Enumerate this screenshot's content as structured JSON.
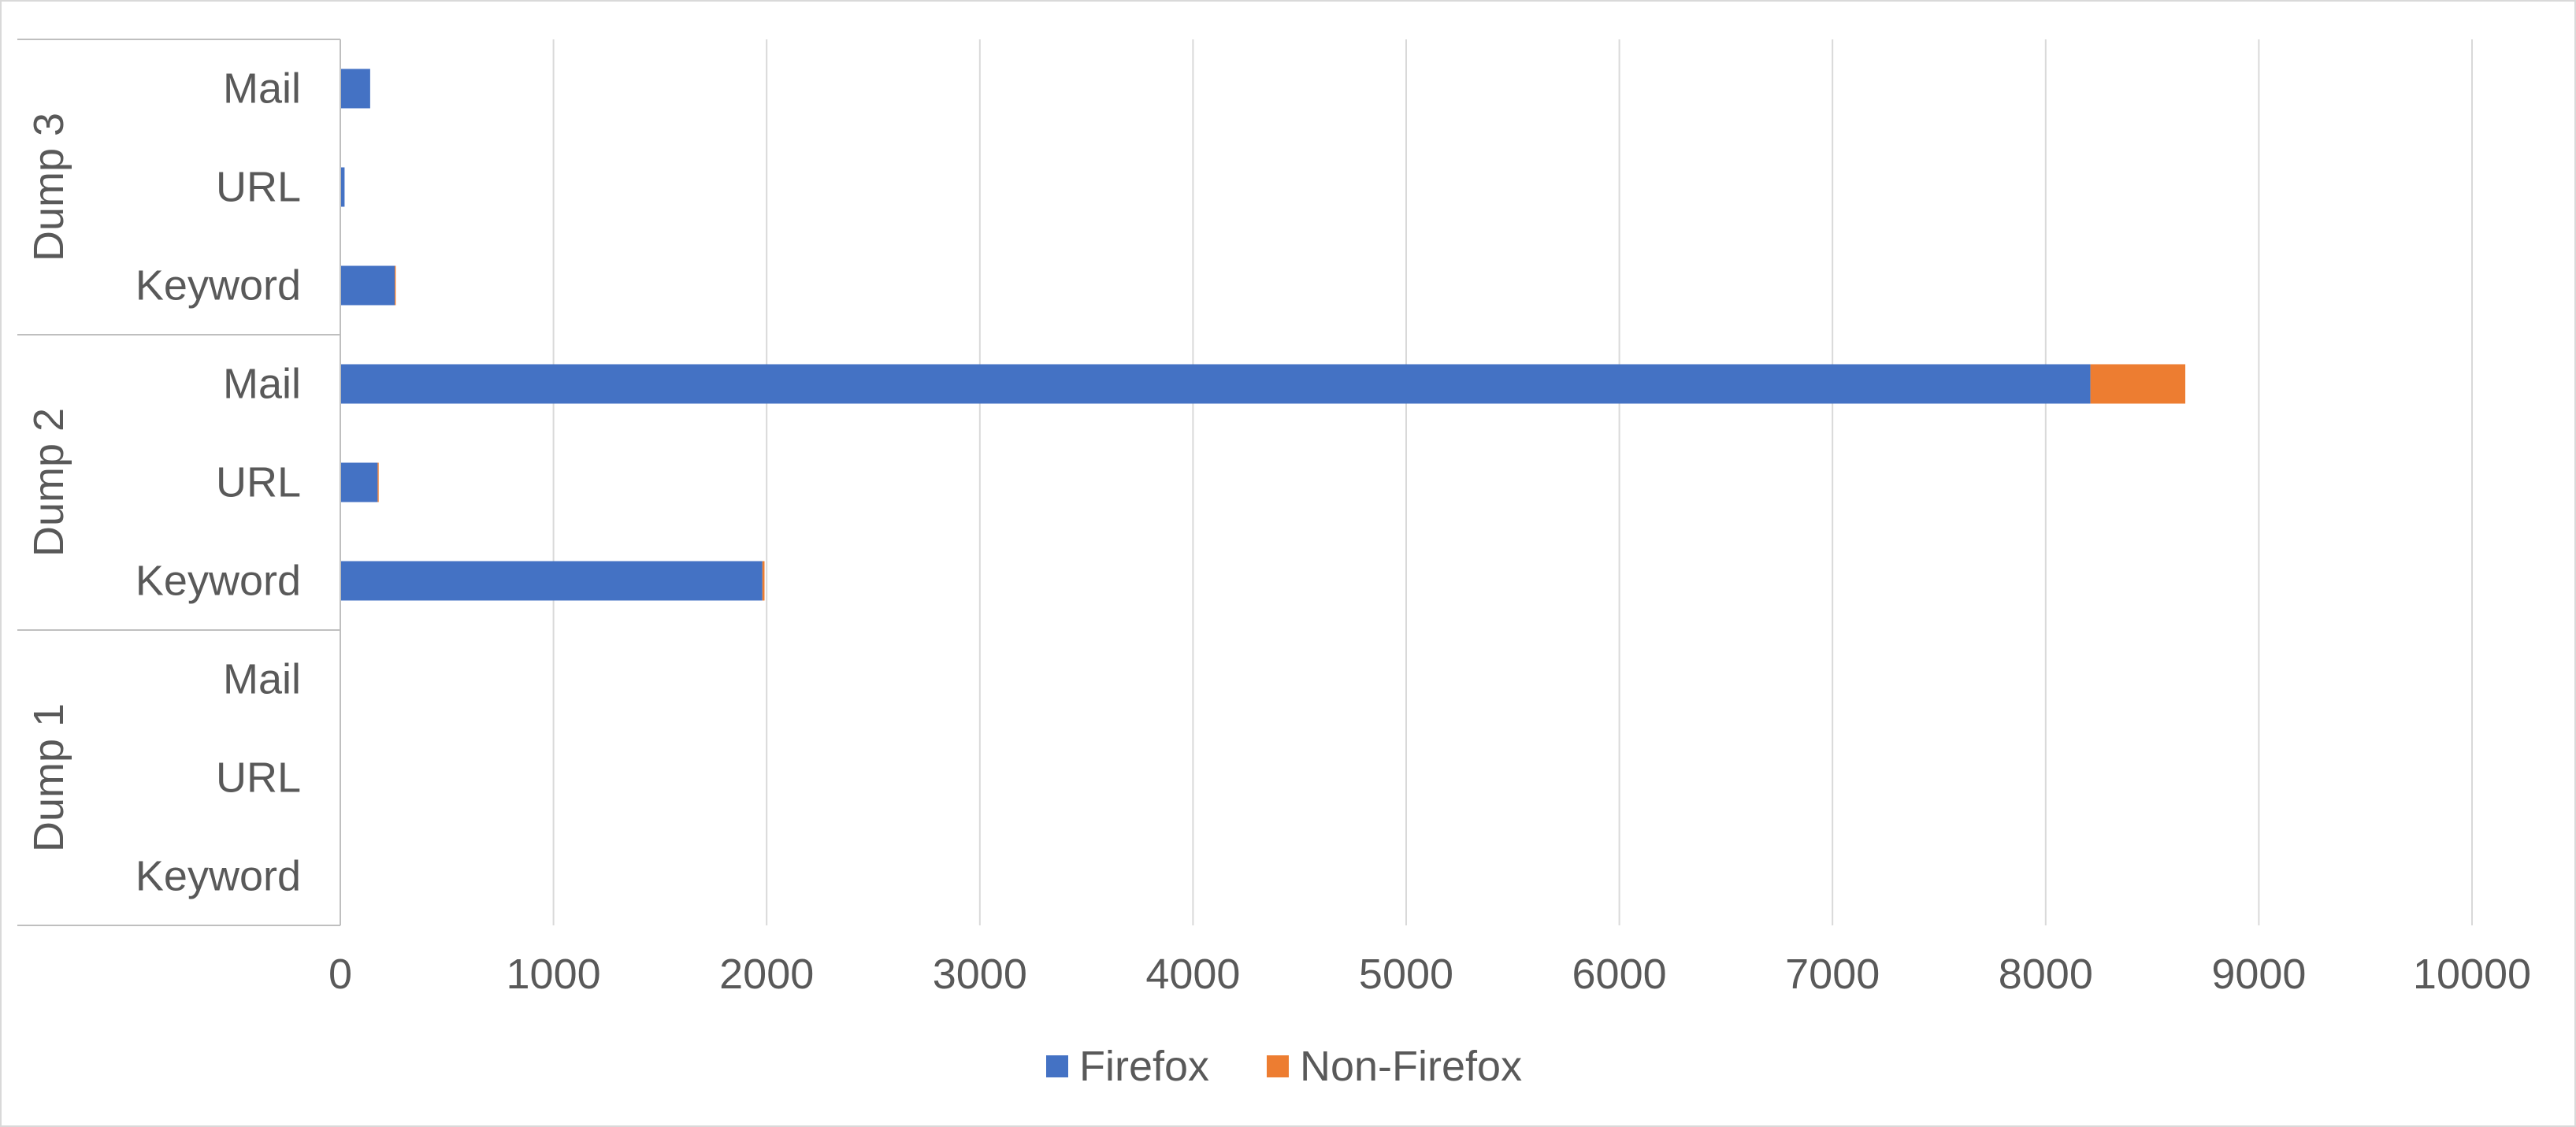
{
  "chart_data": {
    "type": "bar",
    "orientation": "horizontal",
    "stacked": true,
    "groups": [
      {
        "name": "Dump 3",
        "categories": [
          "Mail",
          "URL",
          "Keyword"
        ]
      },
      {
        "name": "Dump 2",
        "categories": [
          "Mail",
          "URL",
          "Keyword"
        ]
      },
      {
        "name": "Dump 1",
        "categories": [
          "Mail",
          "URL",
          "Keyword"
        ]
      }
    ],
    "series": [
      {
        "name": "Firefox",
        "color": "#4472C4",
        "values": [
          140,
          20,
          255,
          8210,
          175,
          1980,
          0,
          0,
          0
        ]
      },
      {
        "name": "Non-Firefox",
        "color": "#ED7D31",
        "values": [
          0,
          0,
          5,
          445,
          5,
          10,
          0,
          0,
          0
        ]
      }
    ],
    "xlim": [
      0,
      10000
    ],
    "xticks": [
      "0",
      "1000",
      "2000",
      "3000",
      "4000",
      "5000",
      "6000",
      "7000",
      "8000",
      "9000",
      "10000"
    ],
    "grid": true,
    "legend_position": "bottom",
    "title": "",
    "xlabel": "",
    "ylabel": ""
  }
}
